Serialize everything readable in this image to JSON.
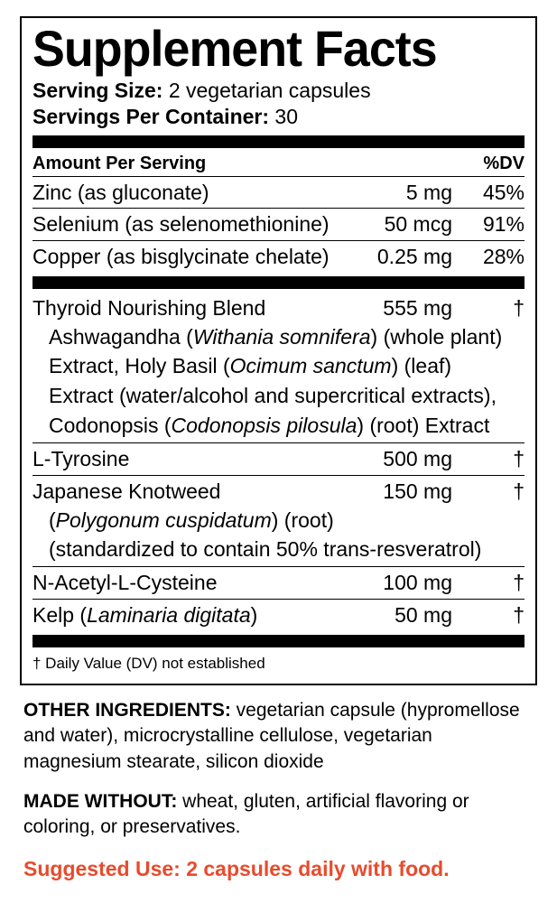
{
  "title": "Supplement Facts",
  "serving_size_label": "Serving Size:",
  "serving_size_value": " 2 vegetarian capsules",
  "servings_per_label": "Servings Per Container:",
  "servings_per_value": " 30",
  "header_amount": "Amount Per Serving",
  "header_dv": "%DV",
  "rows1": [
    {
      "name": "Zinc (as gluconate)",
      "amt": "5 mg",
      "dv": "45%"
    },
    {
      "name": "Selenium (as selenomethionine)",
      "amt": "50 mcg",
      "dv": "91%"
    },
    {
      "name": "Copper (as bisglycinate chelate)",
      "amt": "0.25 mg",
      "dv": "28%"
    }
  ],
  "blend": {
    "name": "Thyroid Nourishing Blend",
    "amt": "555 mg",
    "dv": "†",
    "line1a": "Ashwagandha (",
    "line1i": "Withania somnifera",
    "line1b": ") (whole plant)",
    "line2a": "Extract, Holy Basil (",
    "line2i": "Ocimum sanctum",
    "line2b": ") (leaf)",
    "line3": "Extract (water/alcohol and supercritical extracts),",
    "line4a": "Codonopsis (",
    "line4i": "Codonopsis pilosula",
    "line4b": ") (root) Extract"
  },
  "ltyrosine": {
    "name": "L-Tyrosine",
    "amt": "500 mg",
    "dv": "†"
  },
  "knotweed": {
    "name": "Japanese Knotweed",
    "amt": "150 mg",
    "dv": "†",
    "sub1a": "(",
    "sub1i": "Polygonum cuspidatum",
    "sub1b": ") (root)",
    "sub2": "(standardized to contain 50% trans-resveratrol)"
  },
  "nac": {
    "name": "N-Acetyl-L-Cysteine",
    "amt": "100 mg",
    "dv": "†"
  },
  "kelp": {
    "name_a": "Kelp (",
    "name_i": "Laminaria digitata",
    "name_b": ")",
    "amt": "50 mg",
    "dv": "†"
  },
  "footnote": "† Daily Value (DV) not established",
  "other_hdr": "OTHER INGREDIENTS:",
  "other_body": " vegetarian capsule (hypromellose and water), microcrystalline cellulose, vegetarian magnesium stearate, silicon dioxide",
  "made_hdr": "MADE WITHOUT:",
  "made_body": " wheat, gluten, artificial flavoring or coloring, or preservatives.",
  "suggested": "Suggested Use: 2 capsules daily with food."
}
